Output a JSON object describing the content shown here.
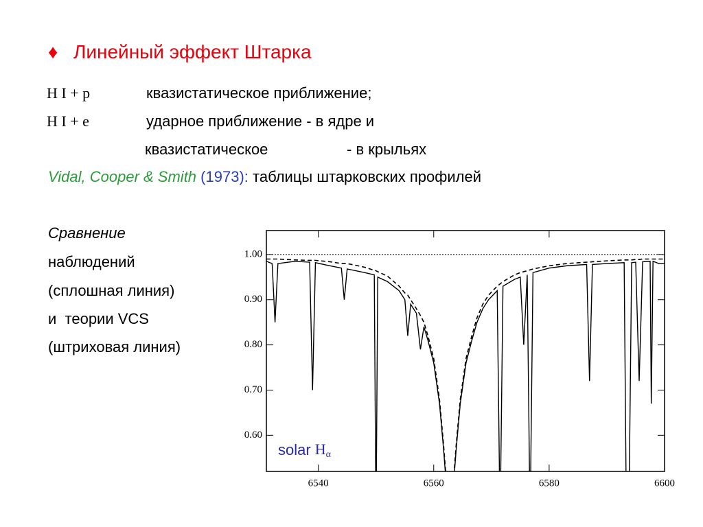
{
  "header": {
    "bullet": "♦",
    "title": "Линейный эффект Штарка"
  },
  "lines": [
    {
      "label": "H I + p",
      "text": "квазистатическое приближение;"
    },
    {
      "label": "H I + e",
      "text": "ударное приближение - в ядре и"
    },
    {
      "text": "квазистатическое",
      "tail": "- в крыльях"
    }
  ],
  "reference": {
    "authors": "Vidal, Cooper & Smith",
    "year": "(1973):",
    "text": "таблицы штарковских профилей"
  },
  "caption": [
    "Сравнение",
    "наблюдений",
    "(сплошная линия)",
    "и  теории VCS",
    "(штриховая линия)"
  ],
  "chart_data": {
    "type": "line",
    "annotation": {
      "text": "solar",
      "symbol": "H",
      "subscript": "α"
    },
    "xlim": [
      6531,
      6600
    ],
    "xticks": [
      6540,
      6560,
      6580,
      6600
    ],
    "ylim": [
      0.52,
      1.053
    ],
    "yticks": [
      {
        "value": 0.6,
        "label": "0.60"
      },
      {
        "value": 0.7,
        "label": "0.70"
      },
      {
        "value": 0.8,
        "label": "0.80"
      },
      {
        "value": 0.9,
        "label": "0.90"
      },
      {
        "value": 1,
        "label": "1.00"
      }
    ],
    "hline": 1,
    "x": [
      6531,
      6532,
      6532.5,
      6533,
      6536,
      6538.5,
      6539,
      6539.5,
      6542,
      6544,
      6544.5,
      6545,
      6548,
      6549.7,
      6550,
      6550.3,
      6552,
      6554,
      6555,
      6555.5,
      6556,
      6557,
      6557.7,
      6558.3,
      6559,
      6560,
      6561,
      6561.7,
      6562.3,
      6562.8,
      6563.3,
      6563.9,
      6564.6,
      6565.6,
      6566.6,
      6567.5,
      6568.5,
      6569.5,
      6571,
      6571.5,
      6572,
      6574,
      6575,
      6575.6,
      6576.2,
      6576.7,
      6577.2,
      6580,
      6583,
      6586.5,
      6587,
      6587.5,
      6590,
      6593,
      6593.4,
      6593.8,
      6594.3,
      6595,
      6595.6,
      6596.2,
      6597.5,
      6597.7,
      6598,
      6599,
      6600
    ],
    "series": [
      {
        "color": "#000000",
        "style": "solid",
        "values": [
          0.985,
          0.98,
          0.85,
          0.98,
          0.985,
          0.983,
          0.7,
          0.982,
          0.975,
          0.97,
          0.9,
          0.968,
          0.96,
          0.955,
          0.4,
          0.95,
          0.94,
          0.92,
          0.9,
          0.82,
          0.89,
          0.87,
          0.79,
          0.84,
          0.81,
          0.76,
          0.67,
          0.57,
          0.47,
          0.4,
          0.47,
          0.57,
          0.67,
          0.76,
          0.81,
          0.85,
          0.88,
          0.9,
          0.92,
          0.4,
          0.93,
          0.945,
          0.95,
          0.8,
          0.955,
          0.4,
          0.96,
          0.97,
          0.975,
          0.978,
          0.72,
          0.978,
          0.98,
          0.982,
          0.4,
          0.4,
          0.982,
          0.983,
          0.72,
          0.984,
          0.985,
          0.67,
          0.985,
          0.98,
          0.98
        ]
      },
      {
        "color": "#000000",
        "style": "dashed",
        "values": [
          0.99,
          0.99,
          0.99,
          0.99,
          0.988,
          0.987,
          0.987,
          0.987,
          0.984,
          0.98,
          0.98,
          0.98,
          0.972,
          0.965,
          0.964,
          0.962,
          0.952,
          0.93,
          0.915,
          0.91,
          0.9,
          0.88,
          0.865,
          0.85,
          0.82,
          0.77,
          0.68,
          0.58,
          0.48,
          0.4,
          0.48,
          0.58,
          0.68,
          0.77,
          0.82,
          0.86,
          0.89,
          0.91,
          0.93,
          0.935,
          0.94,
          0.955,
          0.96,
          0.962,
          0.964,
          0.966,
          0.968,
          0.975,
          0.98,
          0.983,
          0.983,
          0.984,
          0.986,
          0.988,
          0.988,
          0.988,
          0.988,
          0.989,
          0.989,
          0.99,
          0.99,
          0.99,
          0.99,
          0.99,
          0.99
        ]
      }
    ]
  }
}
